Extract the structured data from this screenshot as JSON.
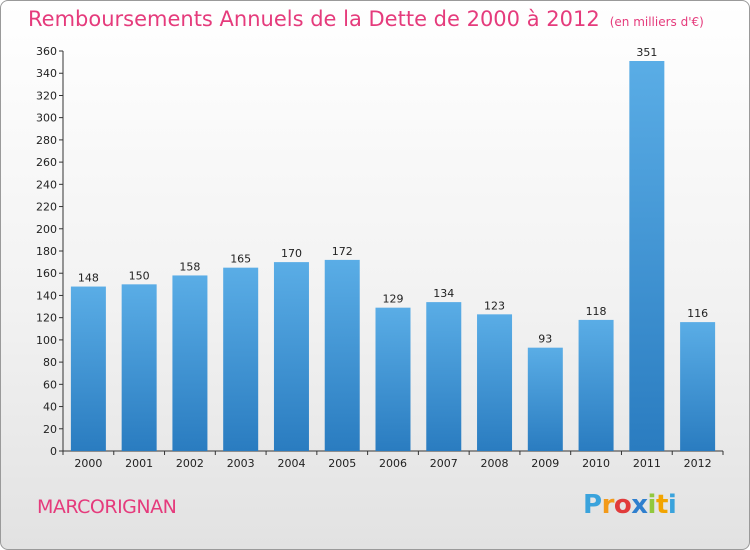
{
  "header": {
    "title": "Remboursements Annuels de la Dette de 2000 à 2012",
    "unit": "(en milliers d'€)"
  },
  "commune": "MARCORIGNAN",
  "logo": {
    "letters": [
      "P",
      "r",
      "o",
      "x",
      "i",
      "t",
      "i"
    ],
    "colors": [
      "#3aa3dc",
      "#f29a1a",
      "#e13b3b",
      "#2f7fce",
      "#92c83e",
      "#f2a400",
      "#3aa3dc"
    ]
  },
  "chart_data": {
    "type": "bar",
    "categories": [
      "2000",
      "2001",
      "2002",
      "2003",
      "2004",
      "2005",
      "2006",
      "2007",
      "2008",
      "2009",
      "2010",
      "2011",
      "2012"
    ],
    "values": [
      148,
      150,
      158,
      165,
      170,
      172,
      129,
      134,
      123,
      93,
      118,
      351,
      116
    ],
    "ylim": [
      0,
      360
    ],
    "yticks": [
      0,
      20,
      40,
      60,
      80,
      100,
      120,
      140,
      160,
      180,
      200,
      220,
      240,
      260,
      280,
      300,
      320,
      340,
      360
    ],
    "grid": false,
    "bar_color_top": "#5aade6",
    "bar_color_bottom": "#2a7cc0"
  }
}
